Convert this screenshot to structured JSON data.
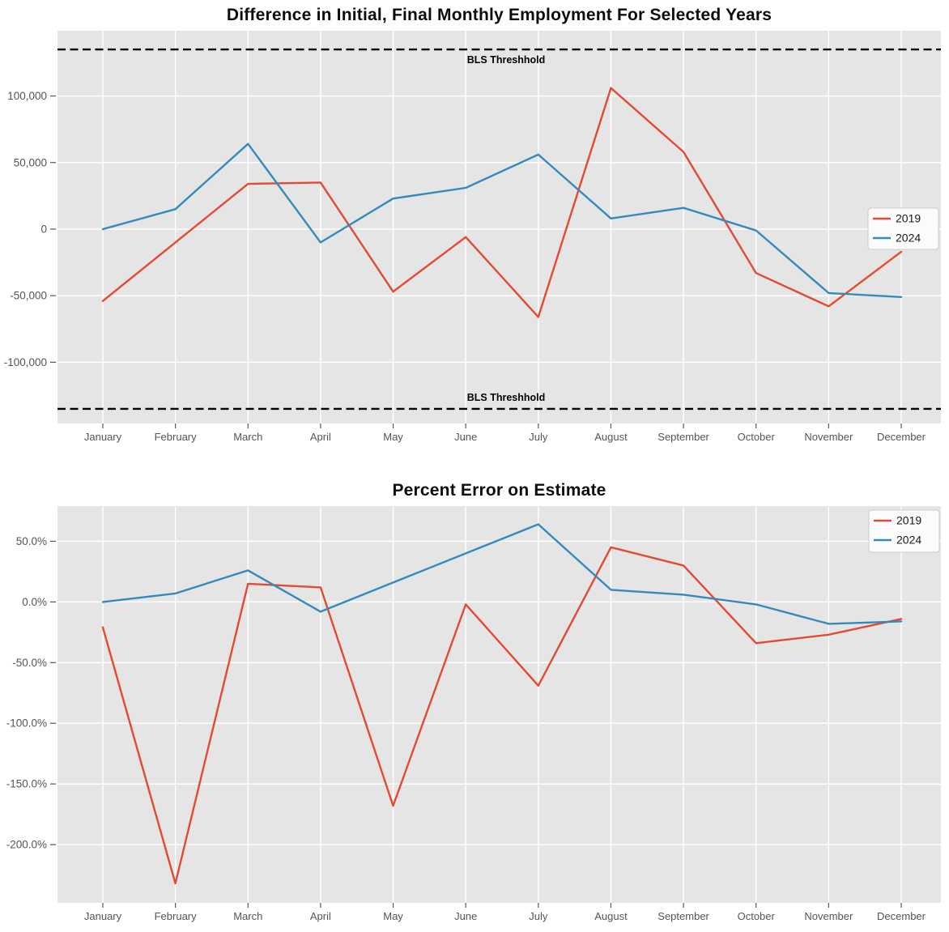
{
  "figure": {
    "background": "#ffffff",
    "plot_background": "#e5e5e5",
    "grid_color": "#ffffff",
    "tick_color": "#555555",
    "tick_label_color": "#555555",
    "title_color": "#0d0d0d",
    "threshold_color": "#000000",
    "legend_background": "#fdfdfd",
    "legend_border": "#cccccc",
    "legend_text_color": "#1a1a1a"
  },
  "chart_data": [
    {
      "type": "line",
      "title": "Difference in Initial, Final Monthly Employment For Selected Years",
      "categories": [
        "January",
        "February",
        "March",
        "April",
        "May",
        "June",
        "July",
        "August",
        "September",
        "October",
        "November",
        "December"
      ],
      "series": [
        {
          "name": "2019",
          "color": "#e24a33",
          "values": [
            -54000,
            -10000,
            34000,
            35000,
            -47000,
            -6000,
            -66000,
            106000,
            58000,
            -33000,
            -58000,
            -17000
          ]
        },
        {
          "name": "2024",
          "color": "#348abd",
          "values": [
            0,
            15000,
            64000,
            -10000,
            23000,
            31000,
            56000,
            8000,
            16000,
            -1000,
            -48000,
            -51000
          ]
        }
      ],
      "ylim": [
        -146000,
        149000
      ],
      "yticks": [
        {
          "value": 100000,
          "label": "100,000"
        },
        {
          "value": 50000,
          "label": "50,000"
        },
        {
          "value": 0,
          "label": "0"
        },
        {
          "value": -50000,
          "label": "-50,000"
        },
        {
          "value": -100000,
          "label": "-100,000"
        }
      ],
      "thresholds": [
        {
          "value": 135000,
          "label": "BLS Threshhold",
          "label_side": "below"
        },
        {
          "value": -135000,
          "label": "BLS Threshhold",
          "label_side": "above"
        }
      ],
      "legend": {
        "entries": [
          "2019",
          "2024"
        ],
        "position": "right-center"
      },
      "grid": true,
      "xlabel": "",
      "ylabel": ""
    },
    {
      "type": "line",
      "title": "Percent Error on Estimate",
      "categories": [
        "January",
        "February",
        "March",
        "April",
        "May",
        "June",
        "July",
        "August",
        "September",
        "October",
        "November",
        "December"
      ],
      "series": [
        {
          "name": "2019",
          "color": "#e24a33",
          "values": [
            -21,
            -232,
            15,
            12,
            -168,
            -2,
            -69,
            45,
            30,
            -34,
            -27,
            -14
          ]
        },
        {
          "name": "2024",
          "color": "#348abd",
          "values": [
            0,
            7,
            26,
            -8,
            16,
            40,
            64,
            10,
            6,
            -2,
            -18,
            -16
          ]
        }
      ],
      "ylim": [
        -248,
        79
      ],
      "yticks": [
        {
          "value": 50,
          "label": "50.0%"
        },
        {
          "value": 0,
          "label": "0.0%"
        },
        {
          "value": -50,
          "label": "-50.0%"
        },
        {
          "value": -100,
          "label": "-100.0%"
        },
        {
          "value": -150,
          "label": "-150.0%"
        },
        {
          "value": -200,
          "label": "-200.0%"
        }
      ],
      "thresholds": [],
      "legend": {
        "entries": [
          "2019",
          "2024"
        ],
        "position": "top-right"
      },
      "grid": true,
      "xlabel": "",
      "ylabel": ""
    }
  ]
}
